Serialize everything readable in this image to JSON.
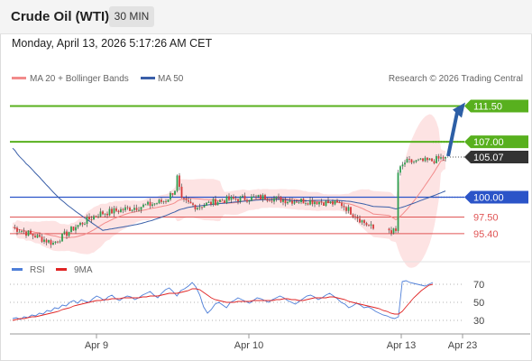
{
  "header": {
    "instrument": "Crude Oil (WTI)",
    "timeframe": "30 MIN"
  },
  "timestamp": "Monday, April 13, 2026 5:17:26 AM CET",
  "legend": {
    "bollinger_label": "MA 20 + Bollinger Bands",
    "ma50_label": "MA 50",
    "copyright": "Research © 2026 Trading Central",
    "rsi_label": "RSI",
    "rsi_ma_label": "9MA"
  },
  "colors": {
    "bollinger": "#f28b8b",
    "bollinger_fill": "#fde3e3",
    "ma50": "#3a5fa8",
    "candle_up": "#2e9e4f",
    "candle_down": "#d63a3a",
    "resistance": "#58b01e",
    "pivot": "#2b54c8",
    "support": "#e05555",
    "last_price_bg": "#333333",
    "arrow": "#2d5fa6",
    "rsi_line": "#4f7fd8",
    "rsi_ma": "#e02424"
  },
  "chart_data": [
    {
      "type": "candlestick",
      "title": "Crude Oil (WTI) 30 MIN",
      "x_ticks": [
        "Apr 9",
        "Apr 10",
        "Apr 13",
        "Apr 23"
      ],
      "y_range": [
        93.0,
        113.5
      ],
      "levels": [
        {
          "label": "111.50",
          "value": 111.5,
          "kind": "resistance"
        },
        {
          "label": "107.00",
          "value": 107.0,
          "kind": "resistance"
        },
        {
          "label": "105.07",
          "value": 105.07,
          "kind": "last"
        },
        {
          "label": "100.00",
          "value": 100.0,
          "kind": "pivot"
        },
        {
          "label": "97.50",
          "value": 97.5,
          "kind": "support"
        },
        {
          "label": "95.40",
          "value": 95.4,
          "kind": "support"
        }
      ],
      "target": {
        "from": 105.07,
        "to": 111.5
      },
      "series": [
        {
          "name": "MA 20 + Bollinger Bands"
        },
        {
          "name": "MA 50"
        }
      ]
    },
    {
      "type": "line",
      "title": "RSI",
      "y_ticks": [
        70,
        50,
        30
      ],
      "y_range": [
        20,
        80
      ],
      "series": [
        {
          "name": "RSI",
          "values": [
            32,
            33,
            31,
            34,
            33,
            36,
            35,
            38,
            37,
            41,
            40,
            44,
            43,
            47,
            46,
            50,
            52,
            49,
            53,
            51,
            50,
            54,
            57,
            55,
            52,
            56,
            58,
            54,
            52,
            55,
            57,
            56,
            53,
            55,
            58,
            60,
            62,
            58,
            55,
            60,
            64,
            66,
            62,
            57,
            63,
            65,
            68,
            72,
            67,
            58,
            45,
            38,
            42,
            48,
            50,
            47,
            44,
            50,
            52,
            55,
            53,
            51,
            49,
            52,
            55,
            54,
            52,
            50,
            53,
            55,
            57,
            55,
            52,
            50,
            48,
            51,
            54,
            57,
            58,
            56,
            53,
            55,
            58,
            60,
            57,
            54,
            50,
            48,
            44,
            46,
            49,
            47,
            44,
            45,
            43,
            40,
            38,
            36,
            35,
            33,
            32,
            34,
            73,
            74,
            72,
            71,
            70,
            69,
            68,
            70,
            72
          ]
        },
        {
          "name": "9MA",
          "values": [
            30,
            31,
            32,
            32,
            33,
            34,
            34,
            35,
            36,
            37,
            38,
            39,
            40,
            42,
            43,
            44,
            46,
            47,
            48,
            49,
            50,
            51,
            52,
            52,
            53,
            53,
            54,
            54,
            54,
            55,
            55,
            55,
            55,
            55,
            56,
            56,
            57,
            57,
            57,
            58,
            59,
            60,
            60,
            60,
            61,
            62,
            63,
            65,
            65,
            64,
            61,
            58,
            55,
            53,
            52,
            51,
            50,
            50,
            50,
            51,
            51,
            51,
            51,
            52,
            52,
            52,
            52,
            52,
            52,
            53,
            53,
            54,
            54,
            53,
            53,
            52,
            52,
            53,
            54,
            55,
            55,
            55,
            55,
            56,
            56,
            55,
            54,
            53,
            51,
            50,
            49,
            48,
            47,
            46,
            45,
            44,
            43,
            41,
            40,
            38,
            37,
            37,
            40,
            45,
            50,
            55,
            59,
            63,
            66,
            69,
            70
          ]
        }
      ]
    }
  ]
}
